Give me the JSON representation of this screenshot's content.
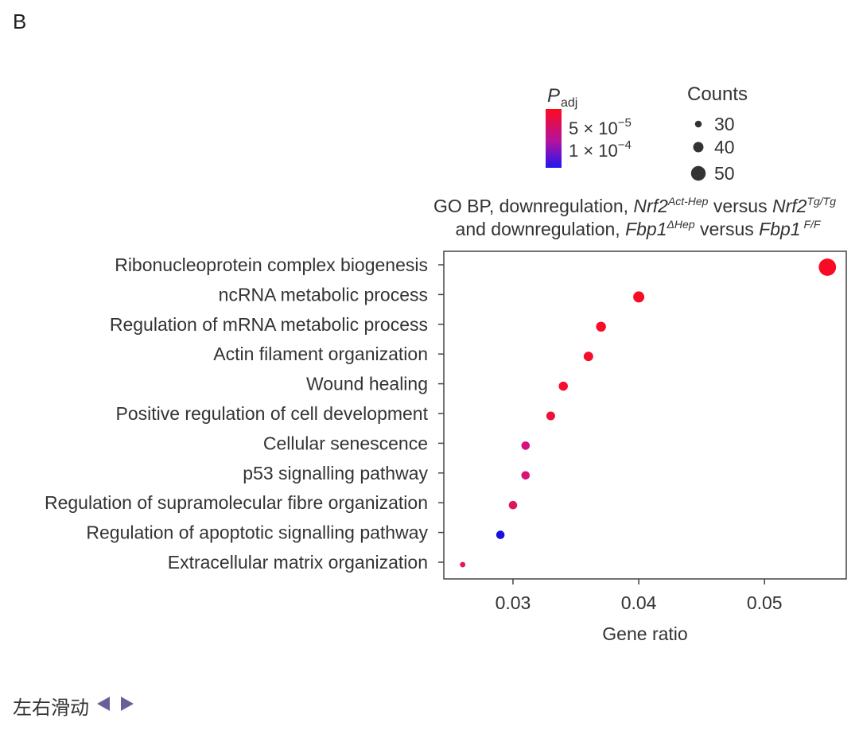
{
  "panel_label": "B",
  "footer": {
    "text": "左右滑动",
    "arrow_color": "#6b5f99"
  },
  "chart_data": {
    "type": "scatter",
    "title_parts": [
      [
        {
          "t": "GO BP, downregulation, ",
          "s": "n"
        },
        {
          "t": "Nrf2",
          "s": "i"
        },
        {
          "t": "Act-Hep",
          "s": "sup"
        },
        {
          "t": " versus ",
          "s": "n"
        },
        {
          "t": "Nrf2",
          "s": "i"
        },
        {
          "t": "Tg/Tg",
          "s": "sup"
        }
      ],
      [
        {
          "t": "and downregulation, ",
          "s": "n"
        },
        {
          "t": "Fbp1",
          "s": "i"
        },
        {
          "t": "ΔHep",
          "s": "sup"
        },
        {
          "t": " versus ",
          "s": "n"
        },
        {
          "t": "Fbp1",
          "s": "i"
        },
        {
          "t": " F/F",
          "s": "sup"
        }
      ]
    ],
    "xlabel": "Gene ratio",
    "ylabel": "",
    "xlim": [
      0.0245,
      0.0565
    ],
    "xticks": [
      0.03,
      0.04,
      0.05
    ],
    "xtick_labels": [
      "0.03",
      "0.04",
      "0.05"
    ],
    "categories": [
      "Ribonucleoprotein complex biogenesis",
      "ncRNA metabolic process",
      "Regulation of mRNA metabolic process",
      "Actin filament organization",
      "Wound healing",
      "Positive regulation of cell development",
      "Cellular senescence",
      "p53 signalling pathway",
      "Regulation of supramolecular fibre organization",
      "Regulation of apoptotic signalling pathway",
      "Extracellular matrix organization"
    ],
    "gene_ratio": [
      0.055,
      0.04,
      0.037,
      0.036,
      0.034,
      0.033,
      0.031,
      0.031,
      0.03,
      0.029,
      0.026
    ],
    "counts": [
      55,
      42,
      39,
      38,
      37,
      36,
      35,
      35,
      35,
      35,
      25
    ],
    "p_adj_colors": [
      "#fa0a24",
      "#f90b26",
      "#f80c27",
      "#f50d2c",
      "#f50e2e",
      "#f00f35",
      "#d4127a",
      "#d81276",
      "#e01560",
      "#1a10e0",
      "#e51560"
    ],
    "legend_color": {
      "title_main": "P",
      "title_sub": "adj",
      "gradient_top": "#ff0a1e",
      "gradient_mid": "#b412a0",
      "gradient_bottom": "#2216f0",
      "labels": [
        {
          "mant": "5 × 10",
          "exp": "−5"
        },
        {
          "mant": "1 × 10",
          "exp": "−4"
        }
      ]
    },
    "legend_size": {
      "title": "Counts",
      "values": [
        30,
        40,
        50
      ],
      "labels": [
        "30",
        "40",
        "50"
      ]
    }
  }
}
